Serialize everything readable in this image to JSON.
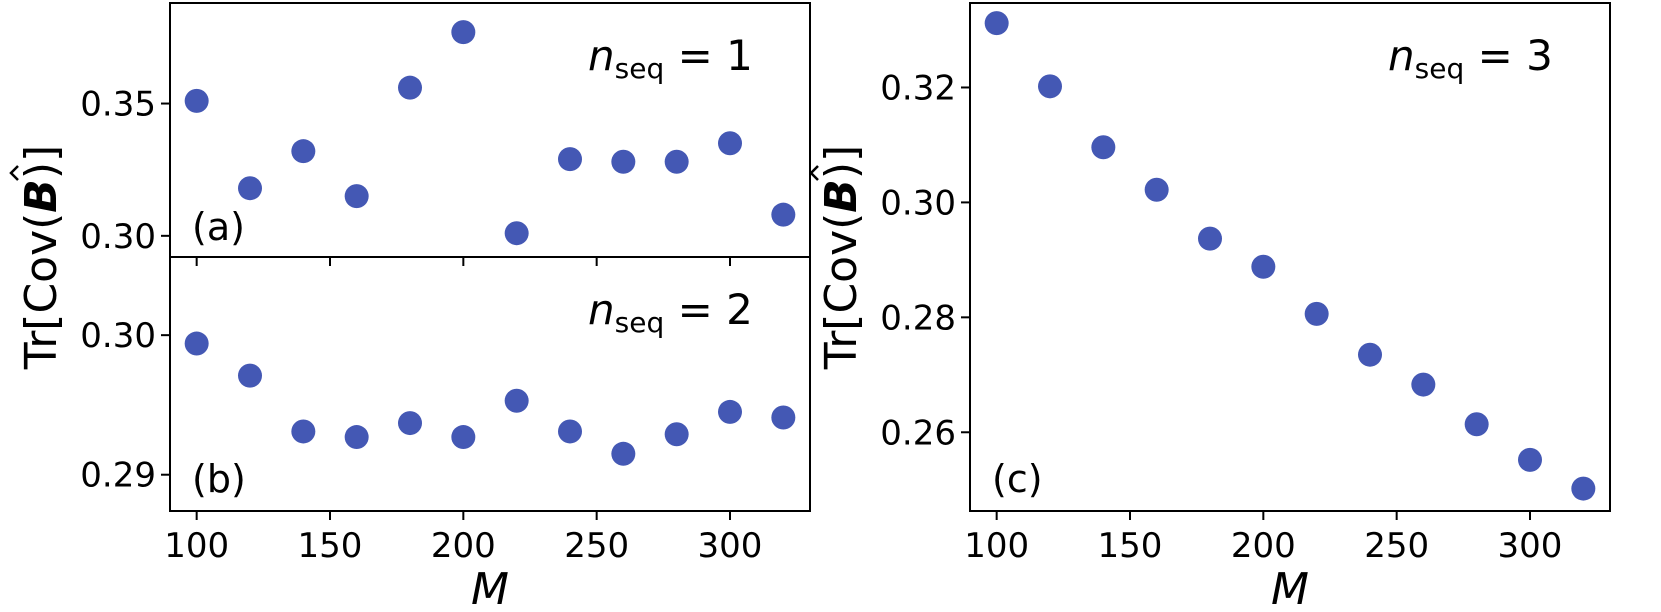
{
  "chart_data": [
    {
      "type": "scatter",
      "panel_label": "(a)",
      "annotation": {
        "var": "n",
        "sub": "seq",
        "rest": " = 1"
      },
      "ylabel_text": "Tr[Cov(",
      "ylabel_bold": "B",
      "ylabel_end": ")]",
      "xlim": [
        90,
        330
      ],
      "ylim": [
        0.292,
        0.388
      ],
      "yticks": [
        0.3,
        0.35
      ],
      "ytick_labels": [
        "0.30",
        "0.35"
      ],
      "x": [
        100,
        120,
        140,
        160,
        180,
        200,
        220,
        240,
        260,
        280,
        300,
        320
      ],
      "y": [
        0.351,
        0.318,
        0.332,
        0.315,
        0.356,
        0.377,
        0.301,
        0.329,
        0.328,
        0.328,
        0.335,
        0.308
      ],
      "color": "#4458b4"
    },
    {
      "type": "scatter",
      "panel_label": "(b)",
      "annotation": {
        "var": "n",
        "sub": "seq",
        "rest": " = 2"
      },
      "xlabel": "M",
      "xlim": [
        90,
        330
      ],
      "ylim": [
        0.2874,
        0.3056
      ],
      "yticks": [
        0.29,
        0.3
      ],
      "ytick_labels": [
        "0.29",
        "0.30"
      ],
      "xticks": [
        100,
        150,
        200,
        250,
        300
      ],
      "xtick_labels": [
        "100",
        "150",
        "200",
        "250",
        "300"
      ],
      "x": [
        100,
        120,
        140,
        160,
        180,
        200,
        220,
        240,
        260,
        280,
        300,
        320
      ],
      "y": [
        0.2994,
        0.2971,
        0.2931,
        0.2927,
        0.2937,
        0.2927,
        0.2953,
        0.2931,
        0.2915,
        0.2929,
        0.2945,
        0.2941
      ],
      "color": "#4458b4"
    },
    {
      "type": "scatter",
      "panel_label": "(c)",
      "annotation": {
        "var": "n",
        "sub": "seq",
        "rest": " = 3"
      },
      "ylabel_text": "Tr[Cov(",
      "ylabel_bold": "B",
      "ylabel_end": ")]",
      "xlabel": "M",
      "xlim": [
        90,
        330
      ],
      "ylim": [
        0.2463,
        0.3347
      ],
      "yticks": [
        0.26,
        0.28,
        0.3,
        0.32
      ],
      "ytick_labels": [
        "0.26",
        "0.28",
        "0.30",
        "0.32"
      ],
      "xticks": [
        100,
        150,
        200,
        250,
        300
      ],
      "xtick_labels": [
        "100",
        "150",
        "200",
        "250",
        "300"
      ],
      "x": [
        100,
        120,
        140,
        160,
        180,
        200,
        220,
        240,
        260,
        280,
        300,
        320
      ],
      "y": [
        0.3312,
        0.3202,
        0.3096,
        0.3022,
        0.2937,
        0.2888,
        0.2806,
        0.2735,
        0.2683,
        0.2614,
        0.2552,
        0.2502
      ],
      "color": "#4458b4"
    }
  ]
}
